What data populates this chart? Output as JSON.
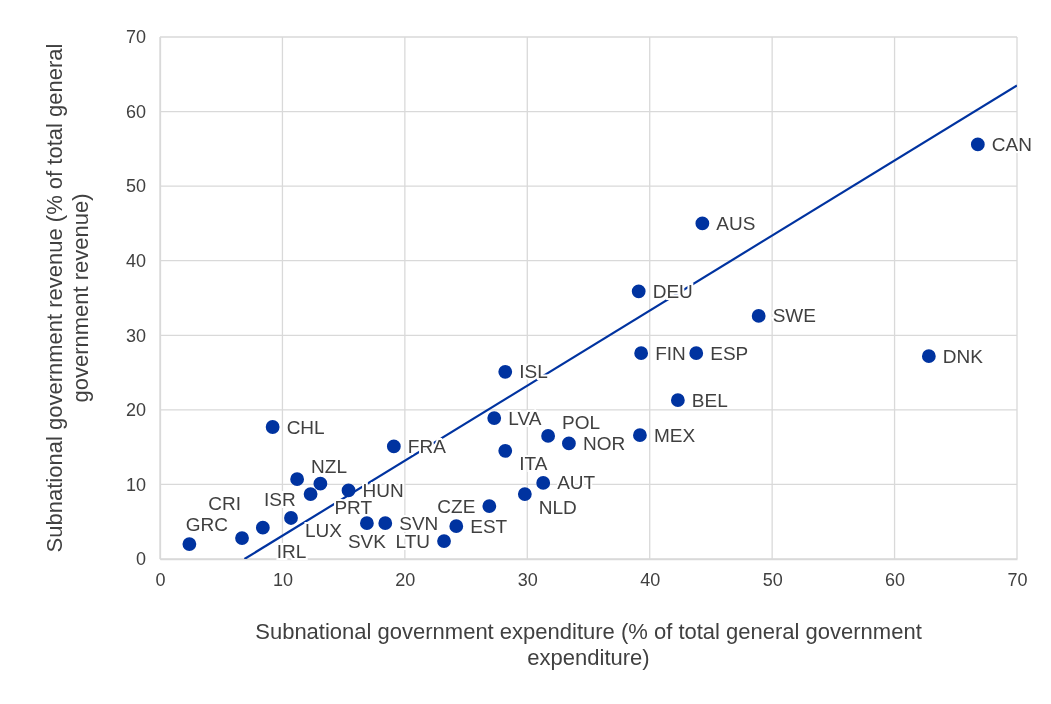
{
  "chart_data": {
    "type": "scatter",
    "xlabel": "Subnational government expenditure (% of total general government expenditure)",
    "ylabel": "Subnational government revenue (% of total general government revenue)",
    "xlim": [
      0,
      70
    ],
    "xticks": [
      0,
      10,
      20,
      30,
      40,
      50,
      60,
      70
    ],
    "ylim": [
      0,
      70
    ],
    "yticks": [
      0,
      10,
      20,
      30,
      40,
      50,
      60,
      70
    ],
    "grid": true,
    "marker": "circle",
    "series": [
      {
        "color": "#0033a0",
        "x": [
          66.8,
          44.3,
          39.1,
          48.9,
          39.3,
          43.8,
          62.8,
          28.2,
          42.3,
          27.3,
          9.2,
          31.7,
          33.4,
          39.2,
          19.1,
          28.2,
          11.2,
          13.1,
          12.3,
          15.4,
          31.3,
          29.8,
          26.9,
          10.7,
          16.9,
          18.4,
          24.2,
          23.2,
          8.4,
          6.7,
          2.4
        ],
        "values": [
          55.6,
          45.0,
          35.9,
          32.6,
          27.6,
          27.6,
          27.2,
          25.1,
          21.3,
          18.9,
          17.7,
          16.5,
          15.5,
          16.6,
          15.1,
          14.5,
          10.7,
          10.1,
          8.7,
          9.2,
          10.2,
          8.7,
          7.1,
          5.5,
          4.8,
          4.8,
          4.4,
          2.4,
          4.2,
          2.8,
          2.0
        ]
      },
      {
        "type": "line",
        "color": "#0033a0",
        "marker": "none",
        "x": [
          6.9,
          70
        ],
        "values": [
          0,
          63.5
        ]
      }
    ],
    "annotations": [
      {
        "text": "CAN",
        "x": 66.8,
        "y": 55.6
      },
      {
        "text": "AUS",
        "x": 44.3,
        "y": 45.0
      },
      {
        "text": "DEU",
        "x": 39.1,
        "y": 35.9
      },
      {
        "text": "SWE",
        "x": 48.9,
        "y": 32.6
      },
      {
        "text": "FIN",
        "x": 39.3,
        "y": 27.6
      },
      {
        "text": "ESP",
        "x": 43.8,
        "y": 27.6
      },
      {
        "text": "DNK",
        "x": 62.8,
        "y": 27.2
      },
      {
        "text": "ISL",
        "x": 28.2,
        "y": 25.1
      },
      {
        "text": "BEL",
        "x": 42.3,
        "y": 21.3
      },
      {
        "text": "LVA",
        "x": 27.3,
        "y": 18.9
      },
      {
        "text": "CHL",
        "x": 9.2,
        "y": 17.7
      },
      {
        "text": "POL",
        "x": 31.7,
        "y": 16.5
      },
      {
        "text": "NOR",
        "x": 33.4,
        "y": 15.5
      },
      {
        "text": "MEX",
        "x": 39.2,
        "y": 16.6
      },
      {
        "text": "FRA",
        "x": 19.1,
        "y": 15.1
      },
      {
        "text": "ITA",
        "x": 28.2,
        "y": 14.5
      },
      {
        "text": "NZL",
        "x": 11.2,
        "y": 10.7
      },
      {
        "text": "PRT",
        "x": 13.1,
        "y": 10.1
      },
      {
        "text": "ISR",
        "x": 12.3,
        "y": 8.7
      },
      {
        "text": "HUN",
        "x": 15.4,
        "y": 9.2
      },
      {
        "text": "AUT",
        "x": 31.3,
        "y": 10.2
      },
      {
        "text": "NLD",
        "x": 29.8,
        "y": 8.7
      },
      {
        "text": "CZE",
        "x": 26.9,
        "y": 7.1
      },
      {
        "text": "LUX",
        "x": 10.7,
        "y": 5.5
      },
      {
        "text": "SVK",
        "x": 16.9,
        "y": 4.8
      },
      {
        "text": "SVN",
        "x": 18.4,
        "y": 4.8
      },
      {
        "text": "EST",
        "x": 24.2,
        "y": 4.4
      },
      {
        "text": "LTU",
        "x": 23.2,
        "y": 2.4
      },
      {
        "text": "IRL",
        "x": 8.4,
        "y": 4.2
      },
      {
        "text": "GRC",
        "x": 6.7,
        "y": 2.8
      },
      {
        "text": "CRI",
        "x": 2.4,
        "y": 2.0
      }
    ]
  }
}
